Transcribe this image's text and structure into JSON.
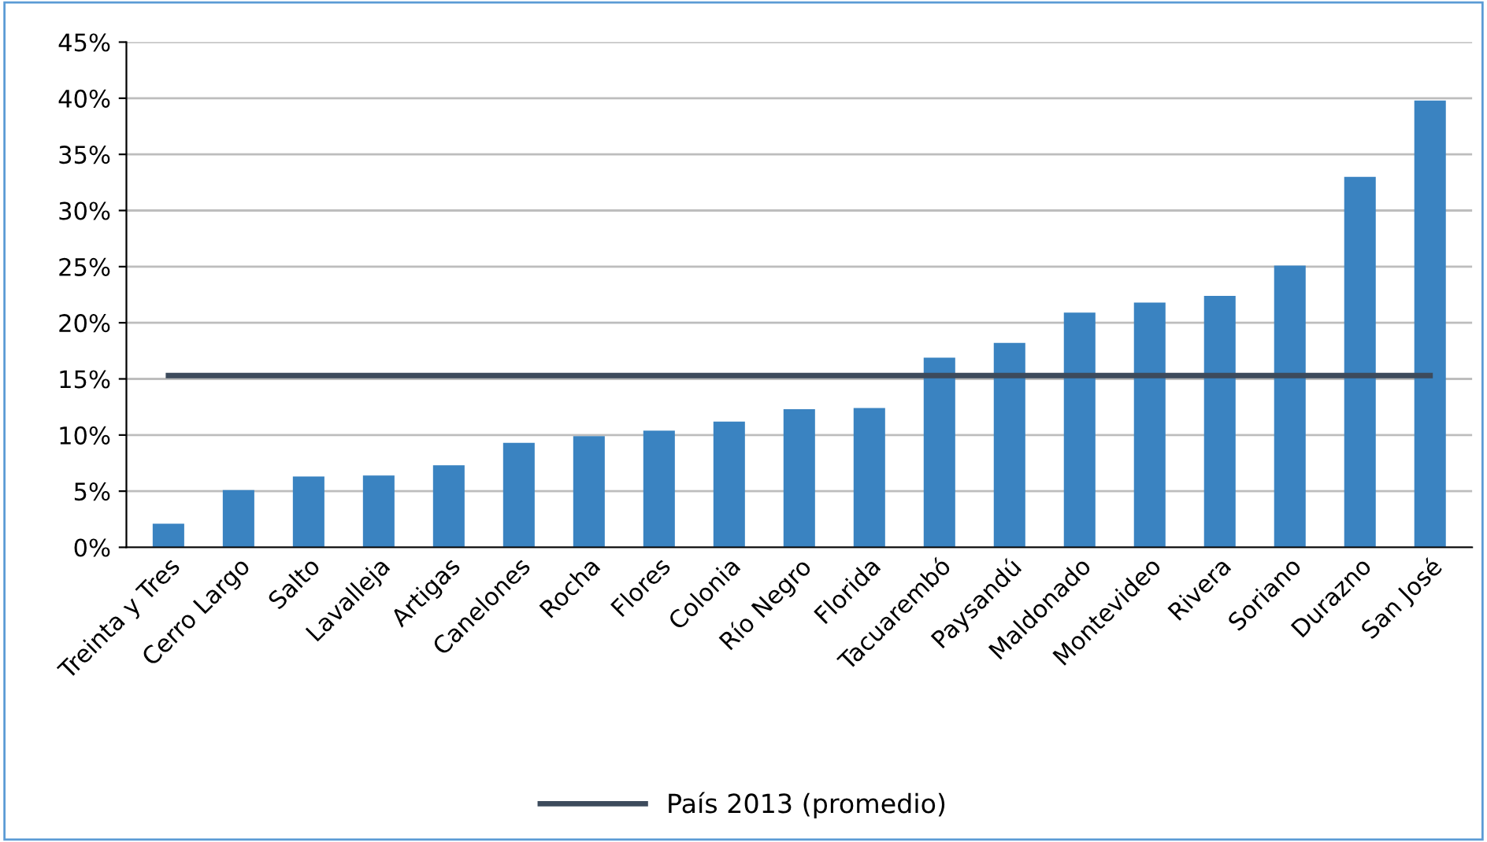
{
  "chart_data": {
    "type": "bar",
    "categories": [
      "Treinta y Tres",
      "Cerro Largo",
      "Salto",
      "Lavalleja",
      "Artigas",
      "Canelones",
      "Rocha",
      "Flores",
      "Colonia",
      "Río Negro",
      "Florida",
      "Tacuarembó",
      "Paysandú",
      "Maldonado",
      "Montevideo",
      "Rivera",
      "Soriano",
      "Durazno",
      "San José"
    ],
    "series": [
      {
        "color": "#3a83c1",
        "values": [
          2.1,
          5.1,
          6.3,
          6.4,
          7.3,
          9.3,
          9.9,
          10.4,
          11.2,
          12.3,
          12.4,
          16.9,
          18.2,
          20.9,
          21.8,
          22.4,
          25.1,
          33.0,
          39.8
        ]
      },
      {
        "type": "line",
        "name": "País 2013 (promedio)",
        "color": "#3d4b5c",
        "values": [
          15.3,
          15.3,
          15.3,
          15.3,
          15.3,
          15.3,
          15.3,
          15.3,
          15.3,
          15.3,
          15.3,
          15.3,
          15.3,
          15.3,
          15.3,
          15.3,
          15.3,
          15.3,
          15.3
        ]
      }
    ],
    "ylim": [
      0,
      45
    ],
    "yticks": [
      {
        "value": 0,
        "label": "0%"
      },
      {
        "value": 5,
        "label": "5%"
      },
      {
        "value": 10,
        "label": "10%"
      },
      {
        "value": 15,
        "label": "15%"
      },
      {
        "value": 20,
        "label": "20%"
      },
      {
        "value": 25,
        "label": "25%"
      },
      {
        "value": 30,
        "label": "30%"
      },
      {
        "value": 35,
        "label": "35%"
      },
      {
        "value": 40,
        "label": "40%"
      },
      {
        "value": 45,
        "label": "45%"
      }
    ],
    "grid": "y",
    "legend": "bottom",
    "marker": "none",
    "line_style": "solid"
  }
}
